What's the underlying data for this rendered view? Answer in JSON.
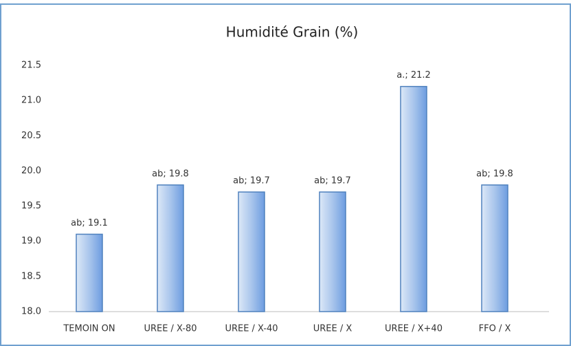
{
  "chart_data": {
    "type": "bar",
    "title": "Humidité Grain (%)",
    "categories": [
      "TEMOIN ON",
      "UREE / X-80",
      "UREE / X-40",
      "UREE / X",
      "UREE / X+40",
      "FFO / X"
    ],
    "values": [
      19.1,
      19.8,
      19.7,
      19.7,
      21.2,
      19.8
    ],
    "value_labels": [
      "ab; 19.1",
      "ab; 19.8",
      "ab; 19.7",
      "ab; 19.7",
      "a.; 21.2",
      "ab; 19.8"
    ],
    "color": "#4f81bd",
    "ylim": [
      18,
      21.5
    ],
    "yticks": [
      {
        "value": 18,
        "label": "18.0"
      },
      18.5,
      {
        "value": 19,
        "label": "19.0"
      },
      19.5,
      {
        "value": 20,
        "label": "20.0"
      },
      20.5,
      {
        "value": 21,
        "label": "21.0"
      },
      21.5
    ],
    "grid": false
  }
}
